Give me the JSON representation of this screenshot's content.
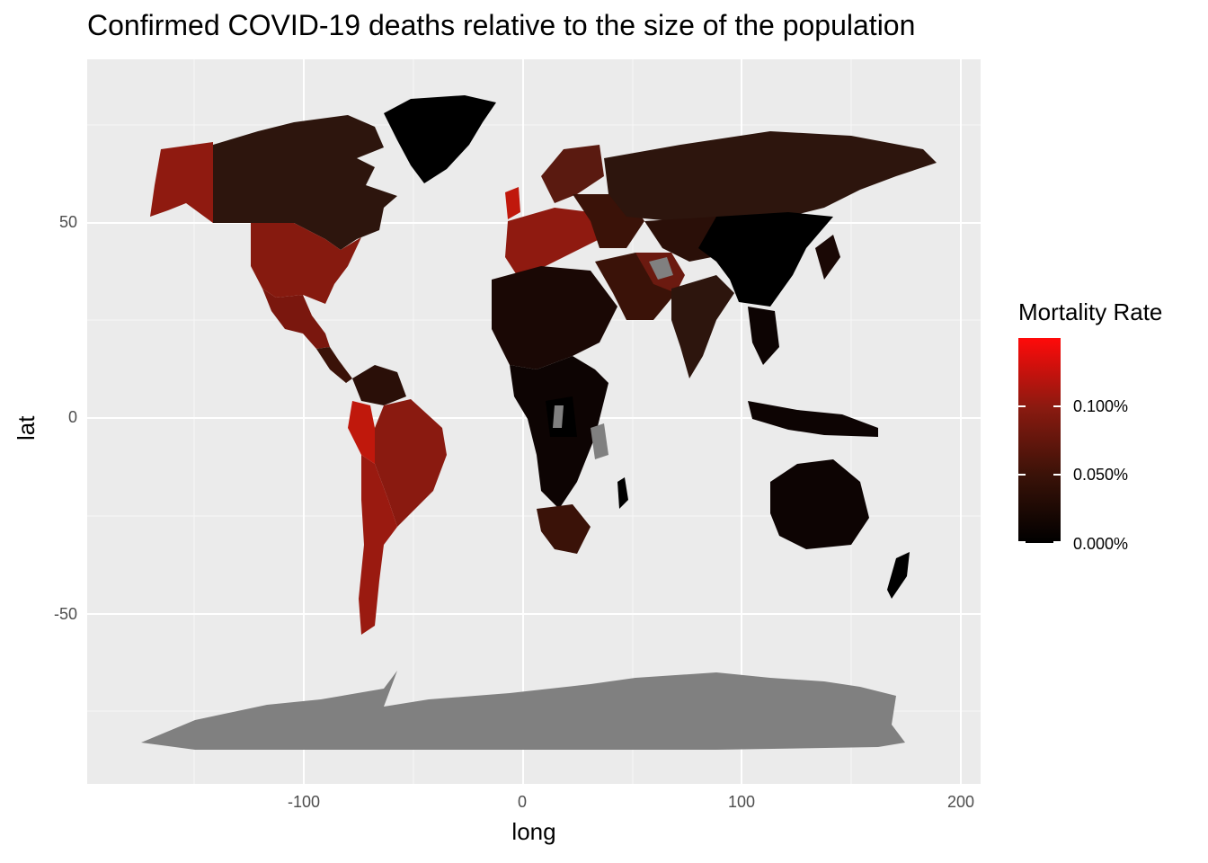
{
  "title": "Confirmed COVID-19 deaths relative to the size of the population",
  "chart_data": {
    "type": "map",
    "projection": "longitude/latitude",
    "xlabel": "long",
    "ylabel": "lat",
    "xlim": [
      -195,
      210
    ],
    "ylim": [
      -93,
      88
    ],
    "x_ticks": [
      -100,
      0,
      100,
      200
    ],
    "x_tick_labels": [
      "-100",
      "0",
      "100",
      "200"
    ],
    "y_ticks": [
      -50,
      0,
      50
    ],
    "y_tick_labels": [
      "-50",
      "0",
      "50"
    ],
    "grid": true,
    "background_color": "#ebebeb",
    "missing_data_color": "#808080",
    "legend": {
      "title": "Mortality Rate",
      "placement": "right",
      "scale": "continuous",
      "min": 0.0,
      "max": 0.15,
      "breaks": [
        0.0,
        0.05,
        0.1
      ],
      "labels": [
        "0.000%",
        "0.050%",
        "0.100%"
      ],
      "colors": [
        "#000000",
        "#ff0a0a"
      ]
    }
  }
}
